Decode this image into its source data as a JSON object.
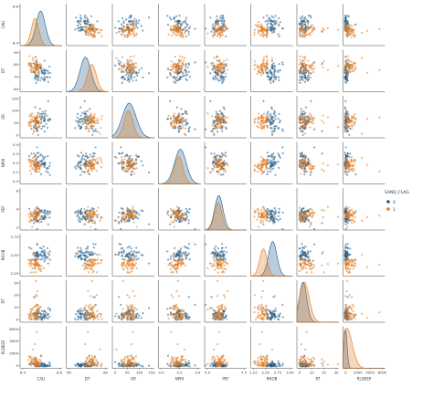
{
  "chart_data": {
    "type": "scatter",
    "variables": [
      "CALI",
      "DT",
      "GR",
      "NPHI",
      "PEF",
      "RHOB",
      "RT",
      "RLDEEP"
    ],
    "hue": {
      "title": "SAND_FLAG",
      "levels": [
        {
          "name": "0",
          "color": "#1f5b8a"
        },
        {
          "name": "1",
          "color": "#e07a1f"
        }
      ]
    },
    "diagonal": "kde",
    "offdiagonal": "scatter",
    "y_ticks": {
      "CALI": [
        "8.6",
        "8.4"
      ],
      "DT": [
        "90",
        "80",
        "70",
        "60"
      ],
      "GR": [
        "150",
        "100",
        "50",
        "0"
      ],
      "NPHI": [
        "0.4",
        "0.3",
        "0.2",
        "0.1",
        "0.0"
      ],
      "PEF": [
        "6",
        "4",
        "2"
      ],
      "RHOB": [
        "2.75",
        "2.50",
        "2.25"
      ],
      "RT": [
        "30",
        "20",
        "10",
        "0"
      ],
      "RLDEEP": [
        "6000",
        "4000",
        "2000",
        "0"
      ]
    },
    "x_ticks": {
      "CALI": [
        "8.4",
        "8.6"
      ],
      "DT": [
        "60",
        "80"
      ],
      "GR": [
        "0",
        "50",
        "100",
        "150"
      ],
      "NPHI": [
        "0.0",
        "0.2",
        "0.4"
      ],
      "PEF": [
        "5.0",
        "7.5"
      ],
      "RHOB": [
        "2.25",
        "2.50",
        "2.75",
        "3.00"
      ],
      "RT": [
        "0",
        "10",
        "20",
        "30"
      ],
      "RLDEEP": [
        "0",
        "2000",
        "4000",
        "6000"
      ]
    },
    "ranges": {
      "CALI": [
        8.3,
        8.75
      ],
      "DT": [
        52,
        98
      ],
      "GR": [
        -10,
        160
      ],
      "NPHI": [
        -0.05,
        0.45
      ],
      "PEF": [
        1,
        9
      ],
      "RHOB": [
        2.15,
        3.05
      ],
      "RT": [
        -2,
        32
      ],
      "RLDEEP": [
        -300,
        6500
      ]
    },
    "centers": {
      "CALI": {
        "0": 8.52,
        "1": 8.46
      },
      "DT": {
        "0": 73,
        "1": 80
      },
      "GR": {
        "0": 58,
        "1": 55
      },
      "NPHI": {
        "0": 0.21,
        "1": 0.19
      },
      "PEF": {
        "0": 3.7,
        "1": 3.6
      },
      "RHOB": {
        "0": 2.62,
        "1": 2.42
      },
      "RT": {
        "0": 3,
        "1": 4
      },
      "RLDEEP": {
        "0": 100,
        "1": 300
      }
    },
    "spreads": {
      "CALI": {
        "0": 0.05,
        "1": 0.04
      },
      "DT": {
        "0": 6,
        "1": 5
      },
      "GR": {
        "0": 28,
        "1": 18
      },
      "NPHI": {
        "0": 0.07,
        "1": 0.05
      },
      "PEF": {
        "0": 0.8,
        "1": 0.7
      },
      "RHOB": {
        "0": 0.09,
        "1": 0.08
      },
      "RT": {
        "0": 3,
        "1": 4
      },
      "RLDEEP": {
        "0": 250,
        "1": 900
      }
    },
    "legend": "right"
  }
}
